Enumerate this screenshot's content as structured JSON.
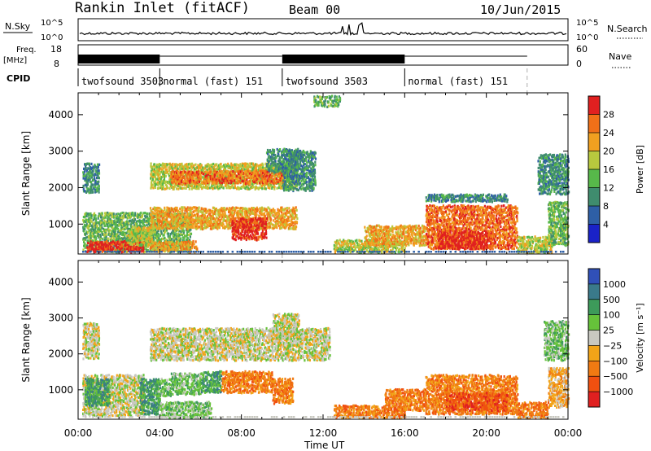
{
  "header": {
    "station": "Rankin Inlet (fitACF)",
    "beam": "Beam 00",
    "date": "10/Jun/2015"
  },
  "strip_labels": {
    "nsky": "N.Sky",
    "nsky_top": "10^5",
    "nsky_bottom": "10^0",
    "nsearch": "N.Search",
    "freq_l1": "Freq.",
    "freq_l2": "[MHz]",
    "freq_top": "18",
    "freq_bottom": "8",
    "nave": "Nave",
    "nave_top": "60",
    "nave_bottom": "0",
    "cpid": "CPID"
  },
  "cpid_segments": [
    {
      "label": "twofsound 3503",
      "start_h": 0.0,
      "end_h": 4.0
    },
    {
      "label": "normal (fast) 151",
      "start_h": 4.0,
      "end_h": 10.0
    },
    {
      "label": "twofsound 3503",
      "start_h": 10.0,
      "end_h": 16.0
    },
    {
      "label": "normal (fast) 151",
      "start_h": 16.0,
      "end_h": 22.0
    }
  ],
  "colors": {
    "power_scale": [
      "#1a22c8",
      "#2e5fa6",
      "#3f8c6e",
      "#57b84a",
      "#b8c93e",
      "#f0a020",
      "#f07018",
      "#e02020"
    ],
    "velocity_scale": [
      "#3050b8",
      "#3a7a8a",
      "#3d9a5a",
      "#66c23a",
      "#c8c8c0",
      "#f2a418",
      "#f07a12",
      "#f05010",
      "#e02020"
    ]
  },
  "chart_data": [
    {
      "type": "heatmap",
      "quantity": "Power",
      "ylabel": "Slant Range [km]",
      "xlabel": "",
      "ylim": [
        180,
        4600
      ],
      "xlim_hours": [
        0,
        24
      ],
      "x_tick_labels": [
        "00:00",
        "04:00",
        "08:00",
        "12:00",
        "16:00",
        "20:00",
        "00:00"
      ],
      "y_ticks": [
        1000,
        2000,
        3000,
        4000
      ],
      "colorbar_label": "Power [dB]",
      "colorbar_ticks": [
        "4",
        "8",
        "12",
        "16",
        "20",
        "24",
        "28"
      ],
      "regions": [
        {
          "t0": 0.2,
          "t1": 1.0,
          "r0": 1850,
          "r1": 2650,
          "level": 2
        },
        {
          "t0": 0.2,
          "t1": 5.5,
          "r0": 220,
          "r1": 1300,
          "level": 3
        },
        {
          "t0": 0.4,
          "t1": 3.2,
          "r0": 220,
          "r1": 520,
          "level": 7
        },
        {
          "t0": 2.4,
          "t1": 3.6,
          "r0": 400,
          "r1": 900,
          "level": 4
        },
        {
          "t0": 3.5,
          "t1": 5.8,
          "r0": 220,
          "r1": 520,
          "level": 5
        },
        {
          "t0": 3.5,
          "t1": 10.7,
          "r0": 1950,
          "r1": 2650,
          "level": 4
        },
        {
          "t0": 4.5,
          "t1": 10.0,
          "r0": 2100,
          "r1": 2450,
          "level": 6
        },
        {
          "t0": 3.5,
          "t1": 10.7,
          "r0": 850,
          "r1": 1450,
          "level": 5
        },
        {
          "t0": 7.5,
          "t1": 9.2,
          "r0": 550,
          "r1": 1150,
          "level": 7
        },
        {
          "t0": 9.2,
          "t1": 10.8,
          "r0": 2400,
          "r1": 3050,
          "level": 2
        },
        {
          "t0": 10.0,
          "t1": 11.6,
          "r0": 1900,
          "r1": 3000,
          "level": 2
        },
        {
          "t0": 11.5,
          "t1": 12.8,
          "r0": 4200,
          "r1": 4500,
          "level": 3
        },
        {
          "t0": 12.5,
          "t1": 16.0,
          "r0": 200,
          "r1": 550,
          "level": 4
        },
        {
          "t0": 14.0,
          "t1": 17.0,
          "r0": 400,
          "r1": 950,
          "level": 5
        },
        {
          "t0": 17.0,
          "t1": 21.5,
          "r0": 300,
          "r1": 1500,
          "level": 6
        },
        {
          "t0": 17.6,
          "t1": 20.2,
          "r0": 300,
          "r1": 800,
          "level": 7
        },
        {
          "t0": 17.0,
          "t1": 21.0,
          "r0": 1600,
          "r1": 1800,
          "level": 2
        },
        {
          "t0": 21.5,
          "t1": 23.2,
          "r0": 200,
          "r1": 650,
          "level": 4
        },
        {
          "t0": 22.5,
          "t1": 24.0,
          "r0": 1800,
          "r1": 2900,
          "level": 2
        },
        {
          "t0": 23.0,
          "t1": 24.0,
          "r0": 400,
          "r1": 1600,
          "level": 3
        }
      ]
    },
    {
      "type": "heatmap",
      "quantity": "Velocity",
      "ylabel": "Slant Range [km]",
      "xlabel": "Time UT",
      "ylim": [
        180,
        4600
      ],
      "xlim_hours": [
        0,
        24
      ],
      "x_tick_labels": [
        "00:00",
        "04:00",
        "08:00",
        "12:00",
        "16:00",
        "20:00",
        "00:00"
      ],
      "y_ticks": [
        1000,
        2000,
        3000,
        4000
      ],
      "colorbar_label": "Velocity [m s⁻¹]",
      "colorbar_ticks": [
        "1000",
        "500",
        "100",
        "25",
        "−25",
        "−100",
        "−500",
        "−1000"
      ],
      "regions": [
        {
          "t0": 0.2,
          "t1": 1.0,
          "r0": 1850,
          "r1": 2850,
          "level": 4
        },
        {
          "t0": 0.2,
          "t1": 3.2,
          "r0": 250,
          "r1": 1400,
          "level": 4
        },
        {
          "t0": 0.3,
          "t1": 1.5,
          "r0": 550,
          "r1": 1300,
          "level": 2
        },
        {
          "t0": 3.0,
          "t1": 4.0,
          "r0": 300,
          "r1": 1300,
          "level": 2
        },
        {
          "t0": 3.8,
          "t1": 4.5,
          "r0": 800,
          "r1": 1300,
          "level": 3
        },
        {
          "t0": 3.5,
          "t1": 12.3,
          "r0": 1800,
          "r1": 2700,
          "level": 4
        },
        {
          "t0": 9.5,
          "t1": 10.8,
          "r0": 2400,
          "r1": 3100,
          "level": 4
        },
        {
          "t0": 4.5,
          "t1": 6.0,
          "r0": 850,
          "r1": 1450,
          "level": 3
        },
        {
          "t0": 6.0,
          "t1": 7.0,
          "r0": 900,
          "r1": 1500,
          "level": 2
        },
        {
          "t0": 7.0,
          "t1": 9.5,
          "r0": 900,
          "r1": 1500,
          "level": 6
        },
        {
          "t0": 9.5,
          "t1": 10.5,
          "r0": 600,
          "r1": 1300,
          "level": 6
        },
        {
          "t0": 4.0,
          "t1": 6.5,
          "r0": 200,
          "r1": 650,
          "level": 3
        },
        {
          "t0": 12.5,
          "t1": 16.0,
          "r0": 200,
          "r1": 550,
          "level": 6
        },
        {
          "t0": 15.0,
          "t1": 17.0,
          "r0": 400,
          "r1": 1000,
          "level": 6
        },
        {
          "t0": 17.0,
          "t1": 21.5,
          "r0": 300,
          "r1": 1400,
          "level": 6
        },
        {
          "t0": 18.0,
          "t1": 21.0,
          "r0": 400,
          "r1": 900,
          "level": 7
        },
        {
          "t0": 21.5,
          "t1": 23.0,
          "r0": 200,
          "r1": 650,
          "level": 6
        },
        {
          "t0": 22.8,
          "t1": 24.0,
          "r0": 1800,
          "r1": 2900,
          "level": 3
        },
        {
          "t0": 23.0,
          "t1": 24.0,
          "r0": 500,
          "r1": 1600,
          "level": 5
        }
      ]
    }
  ]
}
